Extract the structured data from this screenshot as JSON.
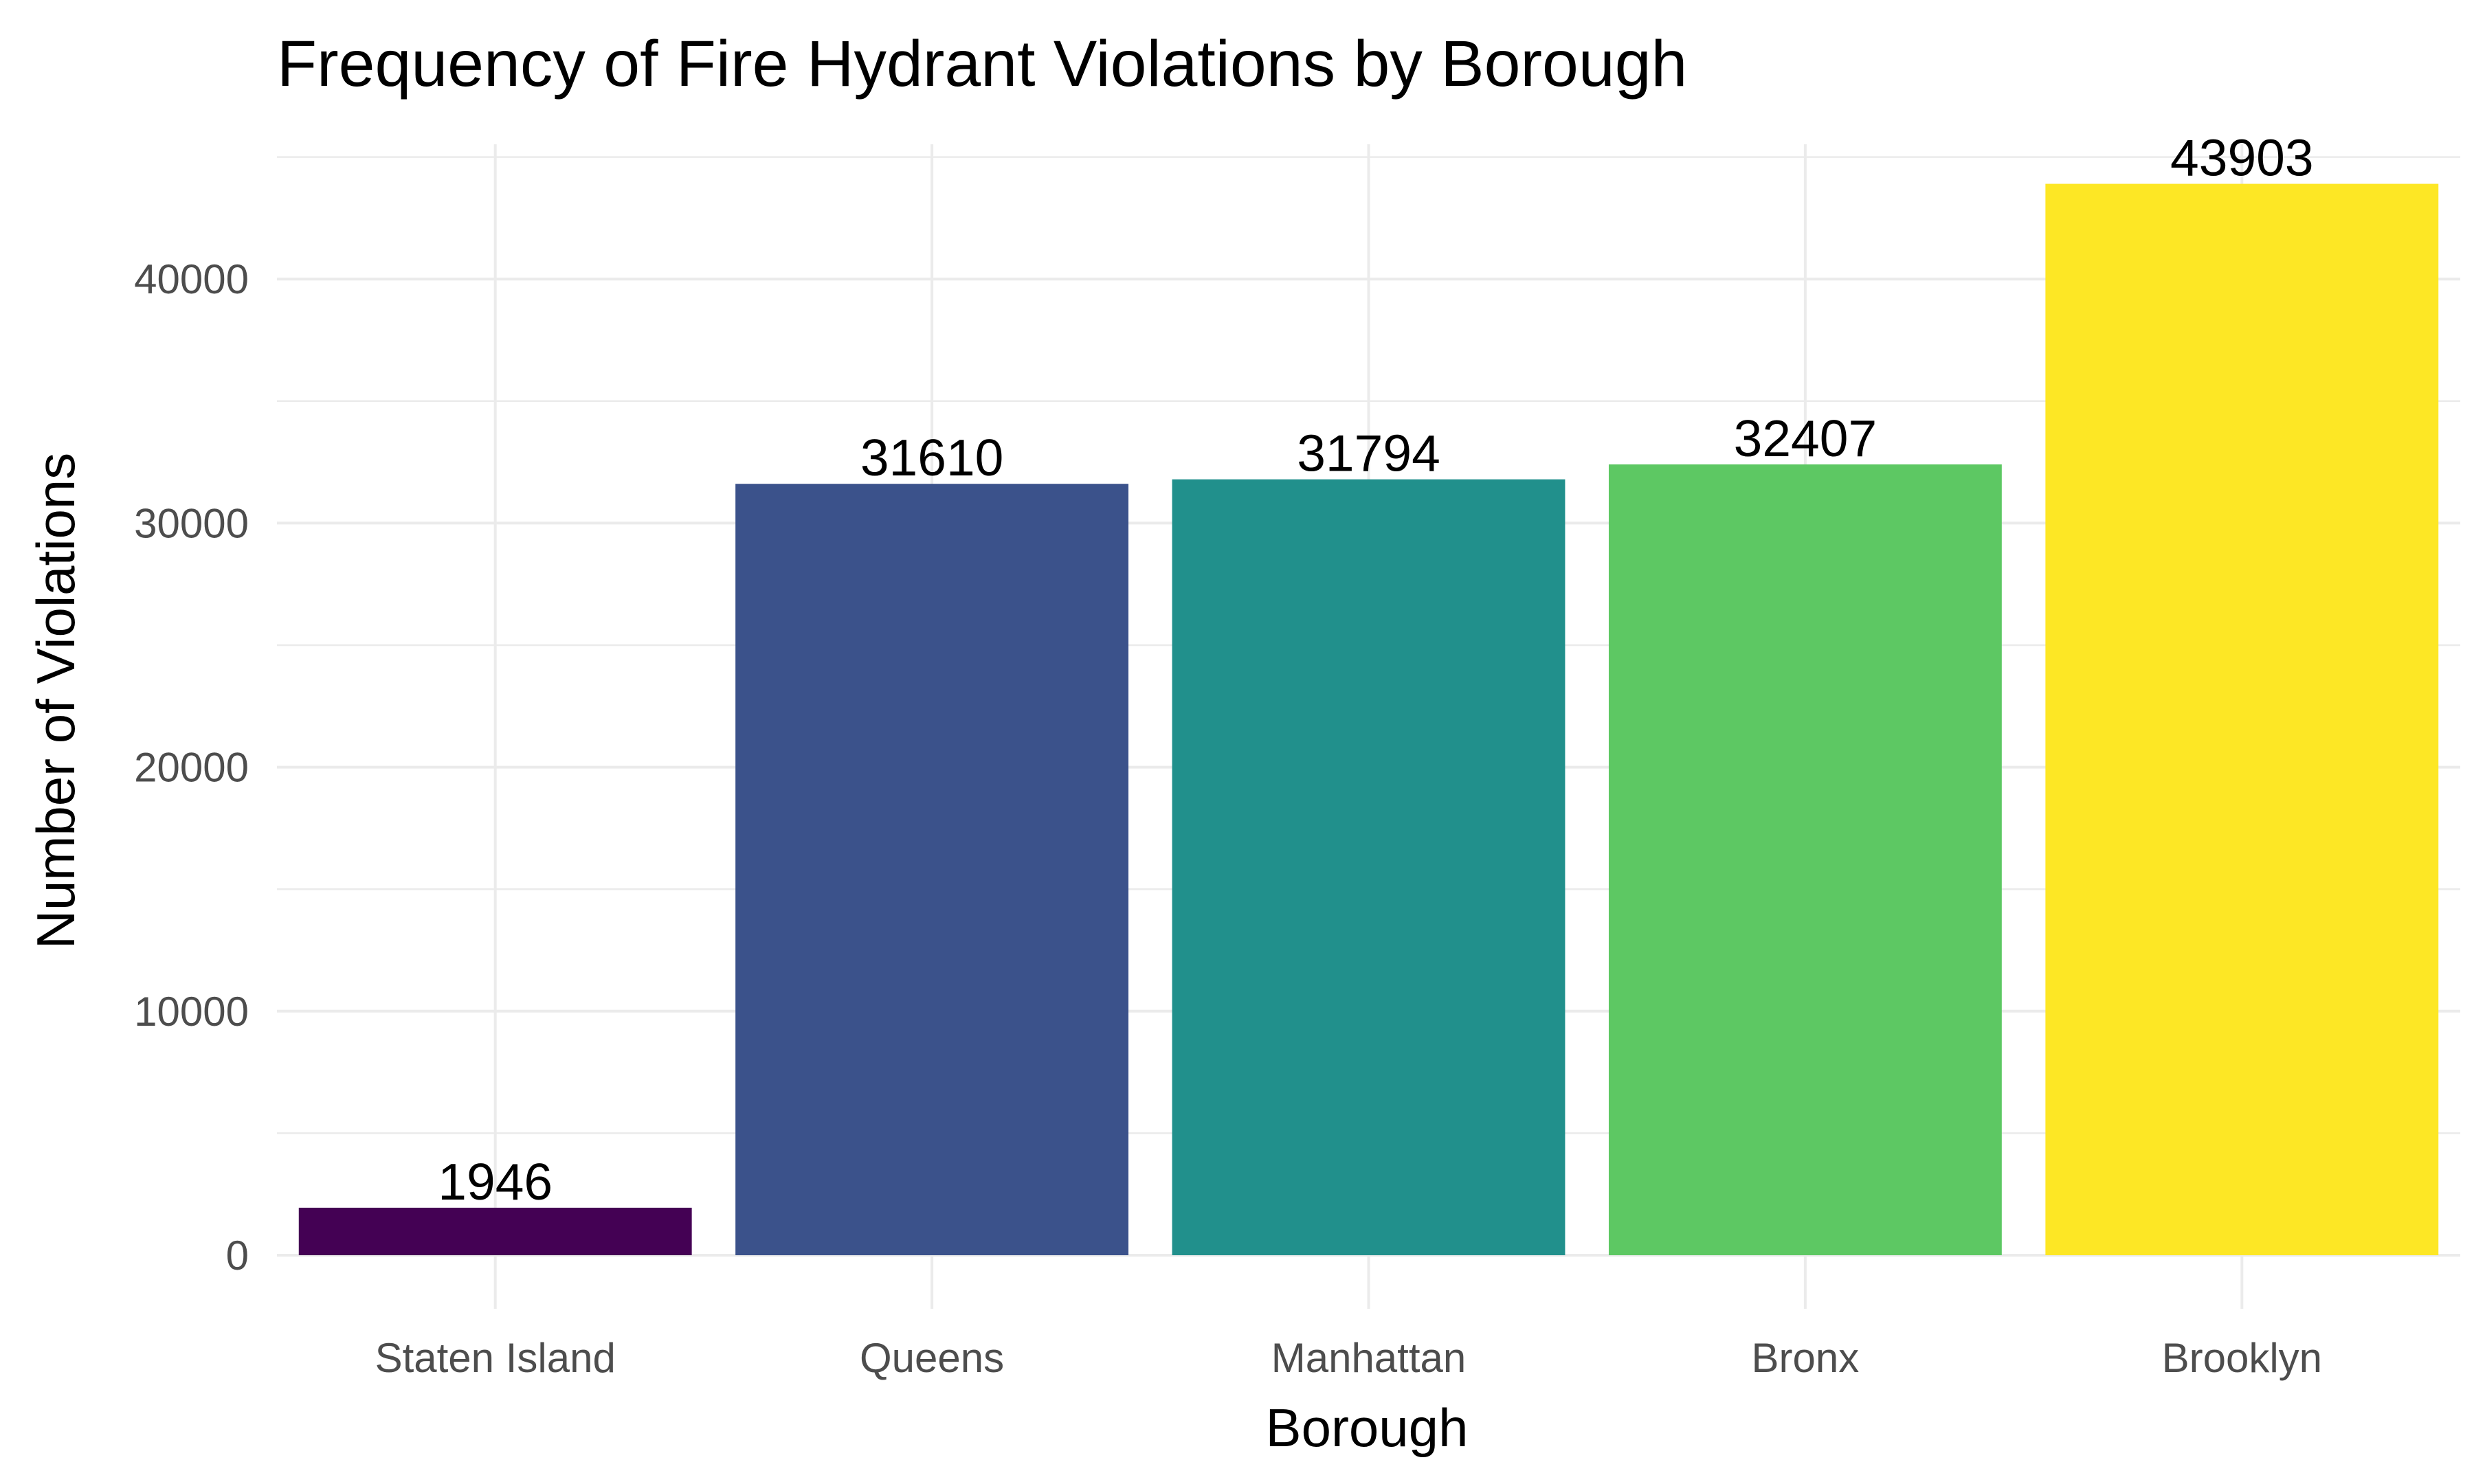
{
  "chart_data": {
    "type": "bar",
    "title": "Frequency of Fire Hydrant Violations by Borough",
    "xlabel": "Borough",
    "ylabel": "Number of Violations",
    "categories": [
      "Staten Island",
      "Queens",
      "Manhattan",
      "Bronx",
      "Brooklyn"
    ],
    "values": [
      1946,
      31610,
      31794,
      32407,
      43903
    ],
    "data_labels": [
      "1946",
      "31610",
      "31794",
      "32407",
      "43903"
    ],
    "colors": [
      "#440154",
      "#3b528b",
      "#21908c",
      "#5dc863",
      "#fde725"
    ],
    "ylim": [
      0,
      46000
    ],
    "yticks": [
      0,
      10000,
      20000,
      30000,
      40000
    ],
    "ytick_labels": [
      "0",
      "10000",
      "20000",
      "30000",
      "40000"
    ],
    "grid": true,
    "legend": "none"
  }
}
